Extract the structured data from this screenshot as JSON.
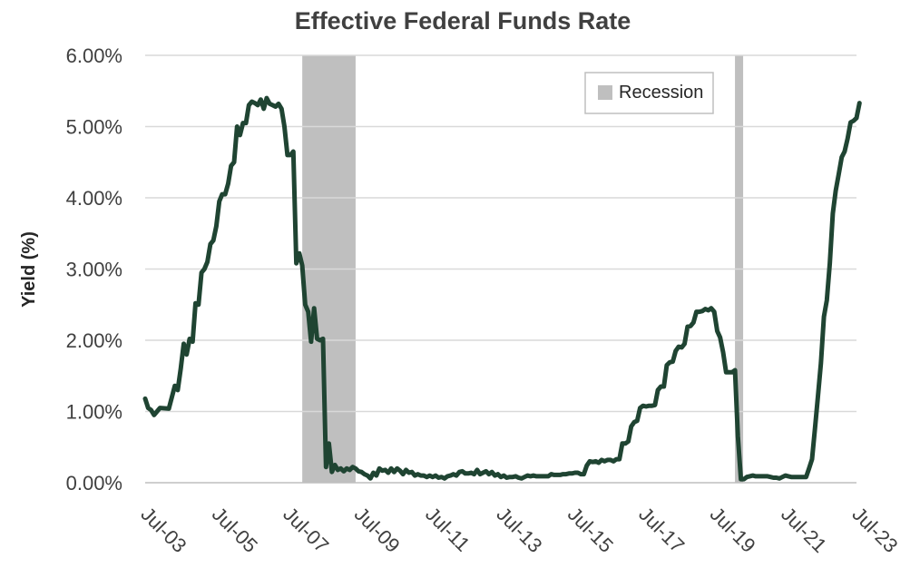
{
  "chart_data": {
    "type": "line",
    "title": "Effective Federal Funds Rate",
    "xlabel": "",
    "ylabel": "Yield (%)",
    "x_range": [
      "2003-07",
      "2023-07"
    ],
    "ylim": [
      0,
      6
    ],
    "y_ticks": [
      "0.00%",
      "1.00%",
      "2.00%",
      "3.00%",
      "4.00%",
      "5.00%",
      "6.00%"
    ],
    "x_ticks": [
      "Jul-03",
      "Jul-05",
      "Jul-07",
      "Jul-09",
      "Jul-11",
      "Jul-13",
      "Jul-15",
      "Jul-17",
      "Jul-19",
      "Jul-21",
      "Jul-23"
    ],
    "grid": "horizontal",
    "legend": {
      "placement": "top-right",
      "entries": [
        "Recession"
      ]
    },
    "colors": {
      "line": "#1f4432",
      "recession": "#bfbfbf",
      "grid": "#d9d9d9",
      "text": "#404040"
    },
    "recessions": [
      {
        "name": "Recession",
        "start": "2007-12",
        "end": "2009-06"
      },
      {
        "name": "Recession",
        "start": "2020-02",
        "end": "2020-04"
      }
    ],
    "series": [
      {
        "points": [
          [
            "2003-07",
            1.18
          ],
          [
            "2003-08",
            1.05
          ],
          [
            "2003-09",
            1.02
          ],
          [
            "2003-10",
            0.95
          ],
          [
            "2003-12",
            1.05
          ],
          [
            "2004-03",
            1.04
          ],
          [
            "2004-05",
            1.36
          ],
          [
            "2004-06",
            1.3
          ],
          [
            "2004-07",
            1.6
          ],
          [
            "2004-08",
            1.95
          ],
          [
            "2004-09",
            1.8
          ],
          [
            "2004-10",
            2.02
          ],
          [
            "2004-11",
            1.98
          ],
          [
            "2004-12",
            2.52
          ],
          [
            "2005-01",
            2.5
          ],
          [
            "2005-02",
            2.95
          ],
          [
            "2005-03",
            3.0
          ],
          [
            "2005-04",
            3.1
          ],
          [
            "2005-05",
            3.35
          ],
          [
            "2005-06",
            3.4
          ],
          [
            "2005-07",
            3.6
          ],
          [
            "2005-08",
            3.95
          ],
          [
            "2005-09",
            4.05
          ],
          [
            "2005-10",
            4.05
          ],
          [
            "2005-11",
            4.2
          ],
          [
            "2005-12",
            4.45
          ],
          [
            "2006-01",
            4.5
          ],
          [
            "2006-02",
            5.0
          ],
          [
            "2006-03",
            4.88
          ],
          [
            "2006-04",
            5.05
          ],
          [
            "2006-05",
            5.05
          ],
          [
            "2006-06",
            5.3
          ],
          [
            "2006-07",
            5.35
          ],
          [
            "2006-08",
            5.33
          ],
          [
            "2006-09",
            5.3
          ],
          [
            "2006-10",
            5.38
          ],
          [
            "2006-11",
            5.25
          ],
          [
            "2006-12",
            5.4
          ],
          [
            "2007-01",
            5.32
          ],
          [
            "2007-02",
            5.3
          ],
          [
            "2007-03",
            5.28
          ],
          [
            "2007-04",
            5.32
          ],
          [
            "2007-05",
            5.25
          ],
          [
            "2007-06",
            5.0
          ],
          [
            "2007-07",
            4.6
          ],
          [
            "2007-08",
            4.6
          ],
          [
            "2007-09",
            4.65
          ],
          [
            "2007-10",
            3.08
          ],
          [
            "2007-11",
            3.22
          ],
          [
            "2007-12",
            3.05
          ],
          [
            "2008-01",
            2.5
          ],
          [
            "2008-02",
            2.4
          ],
          [
            "2008-03",
            1.98
          ],
          [
            "2008-04",
            2.45
          ],
          [
            "2008-05",
            2.02
          ],
          [
            "2008-06",
            2.0
          ],
          [
            "2008-07",
            2.02
          ],
          [
            "2008-08",
            0.22
          ],
          [
            "2008-09",
            0.55
          ],
          [
            "2008-10",
            0.15
          ],
          [
            "2008-11",
            0.25
          ],
          [
            "2008-12",
            0.18
          ],
          [
            "2009-01",
            0.2
          ],
          [
            "2009-02",
            0.16
          ],
          [
            "2009-03",
            0.2
          ],
          [
            "2009-04",
            0.18
          ],
          [
            "2009-05",
            0.22
          ],
          [
            "2009-06",
            0.2
          ],
          [
            "2009-07",
            0.16
          ],
          [
            "2009-08",
            0.15
          ],
          [
            "2009-09",
            0.12
          ],
          [
            "2009-10",
            0.1
          ],
          [
            "2009-11",
            0.06
          ],
          [
            "2009-12",
            0.14
          ],
          [
            "2010-01",
            0.1
          ],
          [
            "2010-02",
            0.2
          ],
          [
            "2010-03",
            0.17
          ],
          [
            "2010-04",
            0.18
          ],
          [
            "2010-05",
            0.14
          ],
          [
            "2010-06",
            0.2
          ],
          [
            "2010-07",
            0.15
          ],
          [
            "2010-08",
            0.2
          ],
          [
            "2010-09",
            0.17
          ],
          [
            "2010-10",
            0.12
          ],
          [
            "2010-11",
            0.18
          ],
          [
            "2010-12",
            0.14
          ],
          [
            "2011-01",
            0.15
          ],
          [
            "2011-02",
            0.1
          ],
          [
            "2011-03",
            0.12
          ],
          [
            "2011-04",
            0.1
          ],
          [
            "2011-05",
            0.1
          ],
          [
            "2011-06",
            0.08
          ],
          [
            "2011-07",
            0.1
          ],
          [
            "2011-08",
            0.08
          ],
          [
            "2011-09",
            0.1
          ],
          [
            "2011-10",
            0.07
          ],
          [
            "2011-11",
            0.08
          ],
          [
            "2011-12",
            0.06
          ],
          [
            "2012-01",
            0.09
          ],
          [
            "2012-02",
            0.1
          ],
          [
            "2012-03",
            0.12
          ],
          [
            "2012-04",
            0.1
          ],
          [
            "2012-05",
            0.15
          ],
          [
            "2012-06",
            0.16
          ],
          [
            "2012-07",
            0.13
          ],
          [
            "2012-08",
            0.13
          ],
          [
            "2012-09",
            0.14
          ],
          [
            "2012-10",
            0.12
          ],
          [
            "2012-11",
            0.18
          ],
          [
            "2012-12",
            0.12
          ],
          [
            "2013-01",
            0.14
          ],
          [
            "2013-02",
            0.16
          ],
          [
            "2013-03",
            0.12
          ],
          [
            "2013-04",
            0.15
          ],
          [
            "2013-05",
            0.1
          ],
          [
            "2013-06",
            0.12
          ],
          [
            "2013-07",
            0.08
          ],
          [
            "2013-08",
            0.1
          ],
          [
            "2013-09",
            0.07
          ],
          [
            "2013-10",
            0.08
          ],
          [
            "2013-11",
            0.08
          ],
          [
            "2013-12",
            0.09
          ],
          [
            "2014-01",
            0.07
          ],
          [
            "2014-02",
            0.06
          ],
          [
            "2014-03",
            0.08
          ],
          [
            "2014-04",
            0.1
          ],
          [
            "2014-05",
            0.09
          ],
          [
            "2014-06",
            0.1
          ],
          [
            "2014-07",
            0.09
          ],
          [
            "2014-08",
            0.09
          ],
          [
            "2014-09",
            0.09
          ],
          [
            "2014-10",
            0.09
          ],
          [
            "2014-11",
            0.09
          ],
          [
            "2014-12",
            0.12
          ],
          [
            "2015-01",
            0.11
          ],
          [
            "2015-02",
            0.11
          ],
          [
            "2015-03",
            0.11
          ],
          [
            "2015-04",
            0.12
          ],
          [
            "2015-05",
            0.12
          ],
          [
            "2015-06",
            0.13
          ],
          [
            "2015-07",
            0.13
          ],
          [
            "2015-08",
            0.14
          ],
          [
            "2015-09",
            0.14
          ],
          [
            "2015-10",
            0.12
          ],
          [
            "2015-11",
            0.12
          ],
          [
            "2015-12",
            0.24
          ],
          [
            "2016-01",
            0.3
          ],
          [
            "2016-02",
            0.29
          ],
          [
            "2016-03",
            0.3
          ],
          [
            "2016-04",
            0.28
          ],
          [
            "2016-05",
            0.32
          ],
          [
            "2016-06",
            0.3
          ],
          [
            "2016-07",
            0.32
          ],
          [
            "2016-08",
            0.32
          ],
          [
            "2016-09",
            0.3
          ],
          [
            "2016-10",
            0.33
          ],
          [
            "2016-11",
            0.33
          ],
          [
            "2016-12",
            0.55
          ],
          [
            "2017-01",
            0.55
          ],
          [
            "2017-02",
            0.58
          ],
          [
            "2017-03",
            0.79
          ],
          [
            "2017-04",
            0.85
          ],
          [
            "2017-05",
            0.87
          ],
          [
            "2017-06",
            1.05
          ],
          [
            "2017-07",
            1.08
          ],
          [
            "2017-08",
            1.07
          ],
          [
            "2017-09",
            1.08
          ],
          [
            "2017-10",
            1.08
          ],
          [
            "2017-11",
            1.09
          ],
          [
            "2017-12",
            1.3
          ],
          [
            "2018-01",
            1.35
          ],
          [
            "2018-02",
            1.35
          ],
          [
            "2018-03",
            1.65
          ],
          [
            "2018-04",
            1.69
          ],
          [
            "2018-05",
            1.7
          ],
          [
            "2018-06",
            1.85
          ],
          [
            "2018-07",
            1.91
          ],
          [
            "2018-08",
            1.9
          ],
          [
            "2018-09",
            1.95
          ],
          [
            "2018-10",
            2.19
          ],
          [
            "2018-11",
            2.2
          ],
          [
            "2018-12",
            2.25
          ],
          [
            "2019-01",
            2.4
          ],
          [
            "2019-02",
            2.4
          ],
          [
            "2019-03",
            2.41
          ],
          [
            "2019-04",
            2.44
          ],
          [
            "2019-05",
            2.42
          ],
          [
            "2019-06",
            2.45
          ],
          [
            "2019-07",
            2.4
          ],
          [
            "2019-08",
            2.13
          ],
          [
            "2019-09",
            2.04
          ],
          [
            "2019-10",
            1.83
          ],
          [
            "2019-11",
            1.55
          ],
          [
            "2019-12",
            1.55
          ],
          [
            "2020-01",
            1.55
          ],
          [
            "2020-02",
            1.58
          ],
          [
            "2020-03",
            0.65
          ],
          [
            "2020-04",
            0.05
          ],
          [
            "2020-05",
            0.05
          ],
          [
            "2020-06",
            0.08
          ],
          [
            "2020-07",
            0.09
          ],
          [
            "2020-08",
            0.1
          ],
          [
            "2020-09",
            0.09
          ],
          [
            "2020-10",
            0.09
          ],
          [
            "2020-11",
            0.09
          ],
          [
            "2020-12",
            0.09
          ],
          [
            "2021-01",
            0.09
          ],
          [
            "2021-02",
            0.08
          ],
          [
            "2021-03",
            0.07
          ],
          [
            "2021-04",
            0.07
          ],
          [
            "2021-05",
            0.06
          ],
          [
            "2021-06",
            0.08
          ],
          [
            "2021-07",
            0.1
          ],
          [
            "2021-08",
            0.09
          ],
          [
            "2021-09",
            0.08
          ],
          [
            "2021-10",
            0.08
          ],
          [
            "2021-11",
            0.08
          ],
          [
            "2021-12",
            0.08
          ],
          [
            "2022-01",
            0.08
          ],
          [
            "2022-02",
            0.08
          ],
          [
            "2022-03",
            0.2
          ],
          [
            "2022-04",
            0.33
          ],
          [
            "2022-05",
            0.77
          ],
          [
            "2022-06",
            1.21
          ],
          [
            "2022-07",
            1.68
          ],
          [
            "2022-08",
            2.33
          ],
          [
            "2022-09",
            2.56
          ],
          [
            "2022-10",
            3.08
          ],
          [
            "2022-11",
            3.78
          ],
          [
            "2022-12",
            4.1
          ],
          [
            "2023-01",
            4.33
          ],
          [
            "2023-02",
            4.57
          ],
          [
            "2023-03",
            4.65
          ],
          [
            "2023-04",
            4.83
          ],
          [
            "2023-05",
            5.06
          ],
          [
            "2023-06",
            5.08
          ],
          [
            "2023-07",
            5.12
          ],
          [
            "2023-08",
            5.33
          ]
        ]
      }
    ]
  }
}
